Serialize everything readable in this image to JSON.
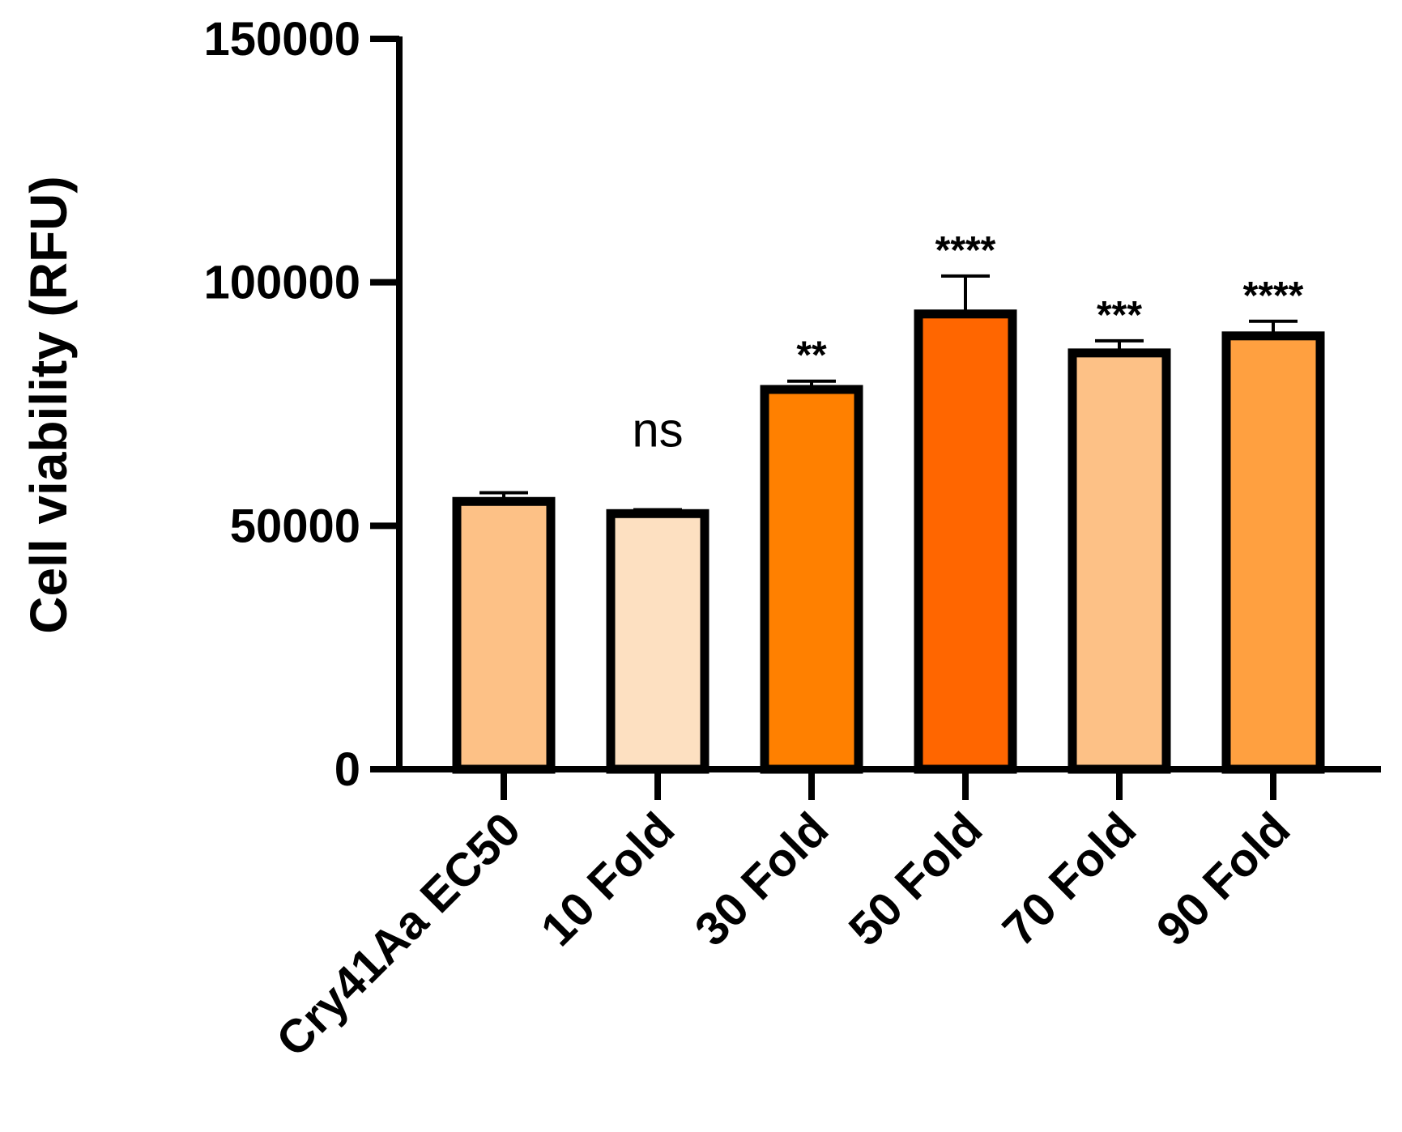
{
  "chart_data": {
    "type": "bar",
    "ylabel": "Cell viability (RFU)",
    "ylim": [
      0,
      150000
    ],
    "yticks": [
      0,
      50000,
      100000,
      150000
    ],
    "yticks_labels": [
      "0",
      "50000",
      "100000",
      "150000"
    ],
    "categories": [
      "Cry41Aa EC50",
      "10 Fold",
      "30 Fold",
      "50 Fold",
      "70 Fold",
      "90 Fold"
    ],
    "values": [
      55000,
      52500,
      78000,
      93500,
      85500,
      89000
    ],
    "errors": [
      1800,
      800,
      1700,
      7800,
      2500,
      3000
    ],
    "significance": [
      "",
      "ns",
      "**",
      "****",
      "***",
      "****"
    ],
    "colors": [
      "#FDC186",
      "#FDE0C1",
      "#FF8000",
      "#FF6600",
      "#FDC186",
      "#FFA040"
    ],
    "grid": false,
    "legend": "none"
  }
}
